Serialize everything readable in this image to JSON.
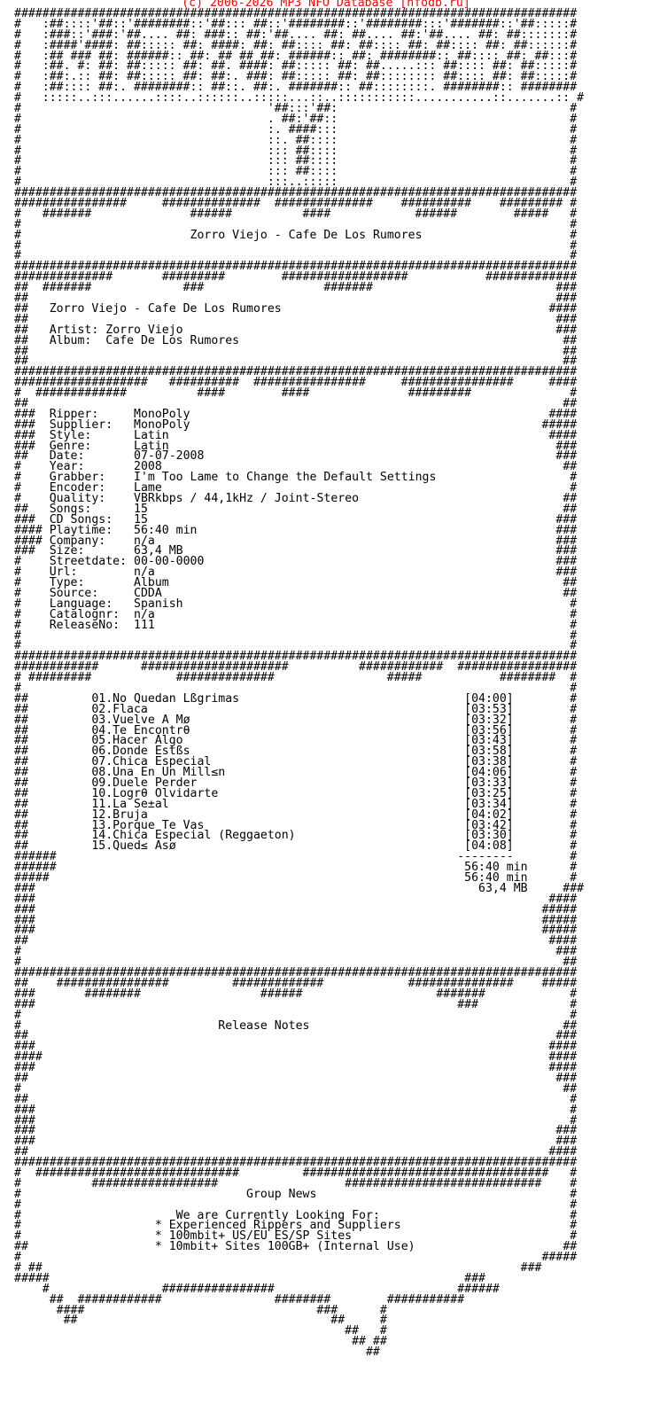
{
  "header": {
    "credit": "(c) 2006-2026 MP3 NFO Database [nfodb.ru]",
    "credit_color": "#ff0000"
  },
  "sections": [
    {
      "name": "logo",
      "lines": [
        "################################################################################",
        "#   :##::::'##::'########::'##::: ##::'########::'########:::'#######::'##:::::#",
        "#   :###::'###:'##.... ##: ###:: ##:'##.... ##: ##.... ##:'##.... ##: ##:::::::#",
        "#   :####'####: ##::::: ##: ####: ##: ##:::: ##: ##:::: ##: ##:::: ##: ##::::::#",
        "#   :## ### ##: ######:: ##: ## ## ##: ######:: ##: ########:: ##:::: ##: ##:::#",
        "#   :##. #: ##: ##::::: ##: ##. ####: ##::::: ##: ##.....::: ##:::: ##: ##:::::#",
        "#   :##:.:: ##: ##::::: ##: ##:. ###: ##::::: ##: ##:::::::: ##:::: ##: ##:::::#",
        "#   :##:::: ##:. ########:: ##::. ##:. #######:: ##::::::::. ########:: ########",
        "#   :::::..:::......::::..::::::..:::::...::..:::::::::::...........::.......:: #",
        "#                                   '##:::'##:                                 #",
        "#                                   . ##:'##::                                 #",
        "#                                   :. ####:::                                 #",
        "#                                   ::. ##::::                                 #",
        "#                                   ::: ##::::                                 #",
        "#                                   ::: ##::::                                 #",
        "#                                   ::: ##::::                                 #",
        "#                                   :::..:::::                                 #",
        "################################################################################"
      ]
    },
    {
      "name": "title-banner",
      "lines": [
        "################     ##############  ##############    ##########    ######### #",
        "#   #######              ######          ####            ######        #####   #",
        {
          "left": "#",
          "right": "#"
        },
        {
          "left": "#",
          "text": "Zorro Viejo - Cafe De Los Rumores",
          "right": "#"
        },
        {
          "left": "#",
          "right": "#"
        },
        {
          "left": "#",
          "right": "#"
        },
        "################################################################################"
      ]
    },
    {
      "name": "release-info",
      "lines": [
        "##############       #########        ##################           #############",
        "##  #######             ###                 #######                          ###",
        {
          "left": "##",
          "right": "###"
        },
        {
          "left": "##",
          "text": "Zorro Viejo - Cafe De Los Rumores",
          "right": "####"
        },
        {
          "left": "##",
          "right": "###"
        },
        {
          "left": "##",
          "label": "Artist:",
          "value": "Zorro Viejo",
          "right": "###"
        },
        {
          "left": "##",
          "label": "Album:",
          "value": "Cafe De Los Rumores",
          "right": "##"
        },
        {
          "left": "##",
          "right": "##"
        },
        {
          "left": "##",
          "right": "##"
        },
        "################################################################################"
      ]
    },
    {
      "name": "release-details",
      "lines": [
        "###################   ##########  ################     ################     ####",
        "#  #############          ####        ####              #########              #",
        {
          "left": "##",
          "right": "##"
        },
        {
          "left": "###",
          "label": "Ripper:",
          "value": "MonoPoly",
          "right": "####"
        },
        {
          "left": "###",
          "label": "Supplier:",
          "value": "MonoPoly",
          "right": "#####"
        },
        {
          "left": "###",
          "label": "Style:",
          "value": "Latin",
          "right": "####"
        },
        {
          "left": "###",
          "label": "Genre:",
          "value": "Latin",
          "right": "###"
        },
        {
          "left": "##",
          "label": "Date:",
          "value": "07-07-2008",
          "right": "###"
        },
        {
          "left": "#",
          "label": "Year:",
          "value": "2008",
          "right": "##"
        },
        {
          "left": "#",
          "label": "Grabber:",
          "value": "I'm Too Lame to Change the Default Settings",
          "right": "#"
        },
        {
          "left": "#",
          "label": "Encoder:",
          "value": "Lame",
          "right": "#"
        },
        {
          "left": "#",
          "label": "Quality:",
          "value": "VBRkbps / 44,1kHz / Joint-Stereo",
          "right": "##"
        },
        {
          "left": "##",
          "label": "Songs:",
          "value": "15",
          "right": "##"
        },
        {
          "left": "###",
          "label": "CD Songs:",
          "value": "15",
          "right": "###"
        },
        {
          "left": "####",
          "label": "Playtime:",
          "value": "56:40 min",
          "right": "###"
        },
        {
          "left": "####",
          "label": "Company:",
          "value": "n/a",
          "right": "###"
        },
        {
          "left": "###",
          "label": "Size:",
          "value": "63,4 MB",
          "right": "###"
        },
        {
          "left": "#",
          "label": "Streetdate:",
          "value": "00-00-0000",
          "right": "###"
        },
        {
          "left": "#",
          "label": "Url:",
          "value": "n/a",
          "right": "###"
        },
        {
          "left": "#",
          "label": "Type:",
          "value": "Album",
          "right": "##"
        },
        {
          "left": "#",
          "label": "Source:",
          "value": "CDDA",
          "right": "##"
        },
        {
          "left": "#",
          "label": "Language:",
          "value": "Spanish",
          "right": "#"
        },
        {
          "left": "#",
          "label": "Catalognr:",
          "value": "n/a",
          "right": "#"
        },
        {
          "left": "#",
          "label": "ReleaseNo:",
          "value": "111",
          "right": "#"
        },
        {
          "left": "#",
          "right": "#"
        },
        {
          "left": "#",
          "right": "#"
        }
      ]
    },
    {
      "name": "tracklist",
      "lines": [
        "################################################################################",
        "############      #####################          ############  #################",
        "# #########            ##############                #####           ########  #",
        {
          "left": "#",
          "right": "#"
        },
        {
          "left": "##",
          "title": "01.No Quedan Lßgrimas",
          "time": "[04:00]",
          "right": "#"
        },
        {
          "left": "##",
          "title": "02.Flaca",
          "time": "[03:53]",
          "right": "#"
        },
        {
          "left": "##",
          "title": "03.Vuelve A Mø",
          "time": "[03:32]",
          "right": "#"
        },
        {
          "left": "##",
          "title": "04.Te Encontrθ",
          "time": "[03:56]",
          "right": "#"
        },
        {
          "left": "##",
          "title": "05.Hacer Algo",
          "time": "[03:43]",
          "right": "#"
        },
        {
          "left": "##",
          "title": "06.Donde Estßs",
          "time": "[03:58]",
          "right": "#"
        },
        {
          "left": "##",
          "title": "07.Chica Especial",
          "time": "[03:38]",
          "right": "#"
        },
        {
          "left": "##",
          "title": "08.Una En Un Mill≤n",
          "time": "[04:06]",
          "right": "#"
        },
        {
          "left": "##",
          "title": "09.Duele Perder",
          "time": "[03:33]",
          "right": "#"
        },
        {
          "left": "##",
          "title": "10.Logrθ Olvidarte",
          "time": "[03:25]",
          "right": "#"
        },
        {
          "left": "##",
          "title": "11.La Se±al",
          "time": "[03:34]",
          "right": "#"
        },
        {
          "left": "##",
          "title": "12.Bruja",
          "time": "[04:02]",
          "right": "#"
        },
        {
          "left": "##",
          "title": "13.Porque Te Vas",
          "time": "[03:42]",
          "right": "#"
        },
        {
          "left": "##",
          "title": "14.Chica Especial (Reggaeton)",
          "time": "[03:30]",
          "right": "#"
        },
        {
          "left": "##",
          "title": "15.Qued≤ Asø",
          "time": "[04:08]",
          "right": "#"
        },
        "######                                                         --------        #",
        "######                                                          56:40 min      #",
        "#####                                                           56:40 min      #",
        "###                                                               63,4 MB     ###",
        {
          "left": "###",
          "right": "####"
        },
        {
          "left": "###",
          "right": "#####"
        },
        {
          "left": "###",
          "right": "#####"
        },
        {
          "left": "###",
          "right": "#####"
        },
        {
          "left": "##",
          "right": "####"
        },
        {
          "left": "#",
          "right": "###"
        },
        {
          "left": "#",
          "right": "##"
        }
      ]
    },
    {
      "name": "release-notes",
      "lines": [
        "################################################################################",
        "##    ################         #############            ###############    #####",
        "###       ########                 ######                   #######            #",
        "###                                                            ###             #",
        {
          "left": "#",
          "right": "#"
        },
        {
          "left": "#",
          "text": "Release Notes",
          "right": "##"
        },
        {
          "left": "##",
          "right": "###"
        },
        {
          "left": "###",
          "right": "####"
        },
        {
          "left": "####",
          "right": "####"
        },
        {
          "left": "###",
          "right": "####"
        },
        {
          "left": "##",
          "right": "###"
        },
        {
          "left": "#",
          "right": "##"
        },
        {
          "left": "##",
          "right": "#"
        },
        {
          "left": "###",
          "right": "#"
        },
        {
          "left": "###",
          "right": "#"
        },
        {
          "left": "###",
          "right": "###"
        },
        {
          "left": "###",
          "right": "###"
        },
        {
          "left": "##",
          "right": "####"
        }
      ]
    },
    {
      "name": "group-news",
      "lines": [
        "################################################################################",
        "#  #############################         ###################################   #",
        "#          ##################                  ############################    #",
        {
          "left": "#",
          "text": "             Group News",
          "right": "#"
        },
        {
          "left": "#",
          "right": "#"
        },
        {
          "left": "#",
          "text": "   We are Currently Looking For:",
          "right": "#"
        },
        {
          "left": "#",
          "text": "* Experienced Rippers and Suppliers",
          "right": "#"
        },
        {
          "left": "#",
          "text": "* 100mbit+ US/EU ES/SP Sites",
          "right": "#"
        },
        {
          "left": "##",
          "text": "* 10mbit+ Sites 100GB+ (Internal Use)",
          "right": "##"
        },
        {
          "left": "#",
          "right": "#####"
        },
        "# ##                                                                    ###",
        "#####                                                           ###",
        "    #                ################                          ######",
        "     ##  ############                ########        ###########",
        "      ####                                 ###      #",
        "       ##                                    ##     #",
        "                                               ##   #",
        "                                                ## ##",
        "                                                  ##"
      ]
    }
  ]
}
